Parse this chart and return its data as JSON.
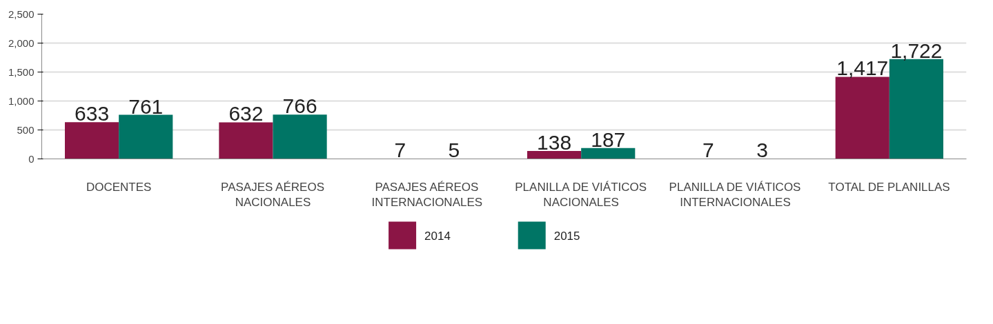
{
  "chart_data": {
    "type": "bar",
    "categories": [
      "DOCENTES",
      "PASAJES AÉREOS NACIONALES",
      "PASAJES AÉREOS INTERNACIONALES",
      "PLANILLA DE VIÁTICOS NACIONALES",
      "PLANILLA DE VIÁTICOS INTERNACIONALES",
      "TOTAL DE PLANILLAS"
    ],
    "series": [
      {
        "name": "2014",
        "color": "#8b1545",
        "values": [
          633,
          632,
          7,
          138,
          7,
          1417
        ],
        "value_labels": [
          "633",
          "632",
          "7",
          "138",
          "7",
          "1,417"
        ]
      },
      {
        "name": "2015",
        "color": "#007565",
        "values": [
          761,
          766,
          5,
          187,
          3,
          1722
        ],
        "value_labels": [
          "761",
          "766",
          "5",
          "187",
          "3",
          "1,722"
        ]
      }
    ],
    "ylim": [
      0,
      2500
    ],
    "yticks": [
      0,
      {
        "value": 500,
        "label": "500"
      },
      {
        "value": 1000,
        "label": "1,000"
      },
      {
        "value": 1500,
        "label": "1,500"
      },
      {
        "value": 2000,
        "label": "2,000"
      },
      {
        "value": 2500,
        "label": "2,500"
      }
    ],
    "grid": "y",
    "legend": "bottom"
  }
}
